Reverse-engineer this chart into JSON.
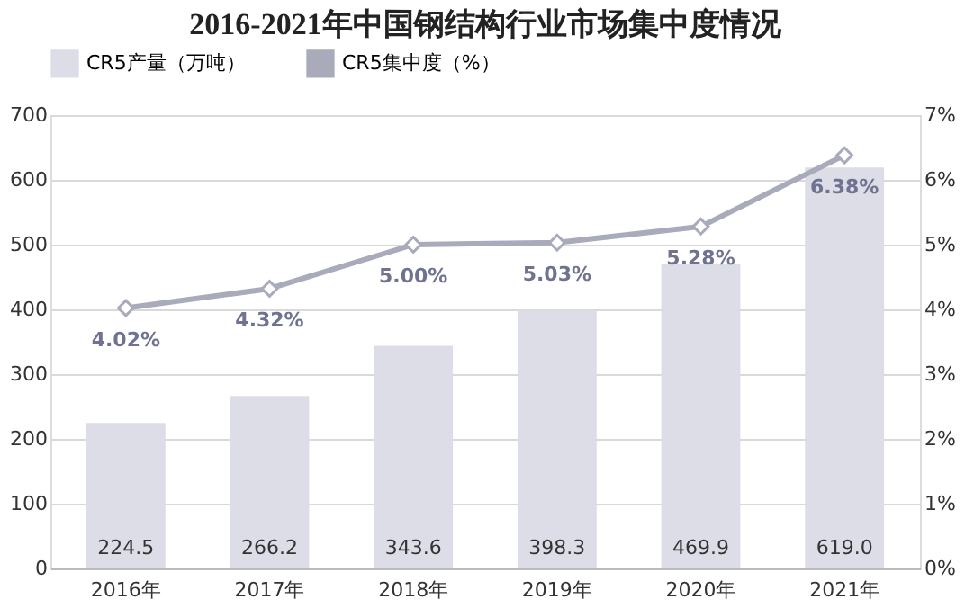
{
  "chart_data": {
    "type": "bar",
    "title": "2016-2021年中国钢结构行业市场集中度情况",
    "categories": [
      "2016年",
      "2017年",
      "2018年",
      "2019年",
      "2020年",
      "2021年"
    ],
    "series": [
      {
        "name": "CR5产量（万吨）",
        "color": "#dcdde6",
        "values": [
          224.5,
          266.2,
          343.6,
          398.3,
          469.9,
          619.0
        ],
        "value_labels": [
          "224.5",
          "266.2",
          "343.6",
          "398.3",
          "469.9",
          "619.0"
        ]
      },
      {
        "name": "CR5集中度（%）",
        "type": "line",
        "axis": "y2",
        "color": "#a9abbb",
        "marker": "diamond",
        "line_style": "solid",
        "values": [
          4.02,
          4.32,
          5.0,
          5.03,
          5.28,
          6.38
        ],
        "value_labels": [
          "4.02%",
          "4.32%",
          "5.00%",
          "5.03%",
          "5.28%",
          "6.38%"
        ]
      }
    ],
    "ylim": [
      0,
      700
    ],
    "yticks": [
      0,
      100,
      200,
      300,
      400,
      500,
      600,
      700
    ],
    "y2lim": [
      0,
      7
    ],
    "y2ticks": [
      {
        "value": 0,
        "label": "0%"
      },
      {
        "value": 1,
        "label": "1%"
      },
      {
        "value": 2,
        "label": "2%"
      },
      {
        "value": 3,
        "label": "3%"
      },
      {
        "value": 4,
        "label": "4%"
      },
      {
        "value": 5,
        "label": "5%"
      },
      {
        "value": 6,
        "label": "6%"
      },
      {
        "value": 7,
        "label": "7%"
      }
    ],
    "grid": "y",
    "legend": "top"
  }
}
